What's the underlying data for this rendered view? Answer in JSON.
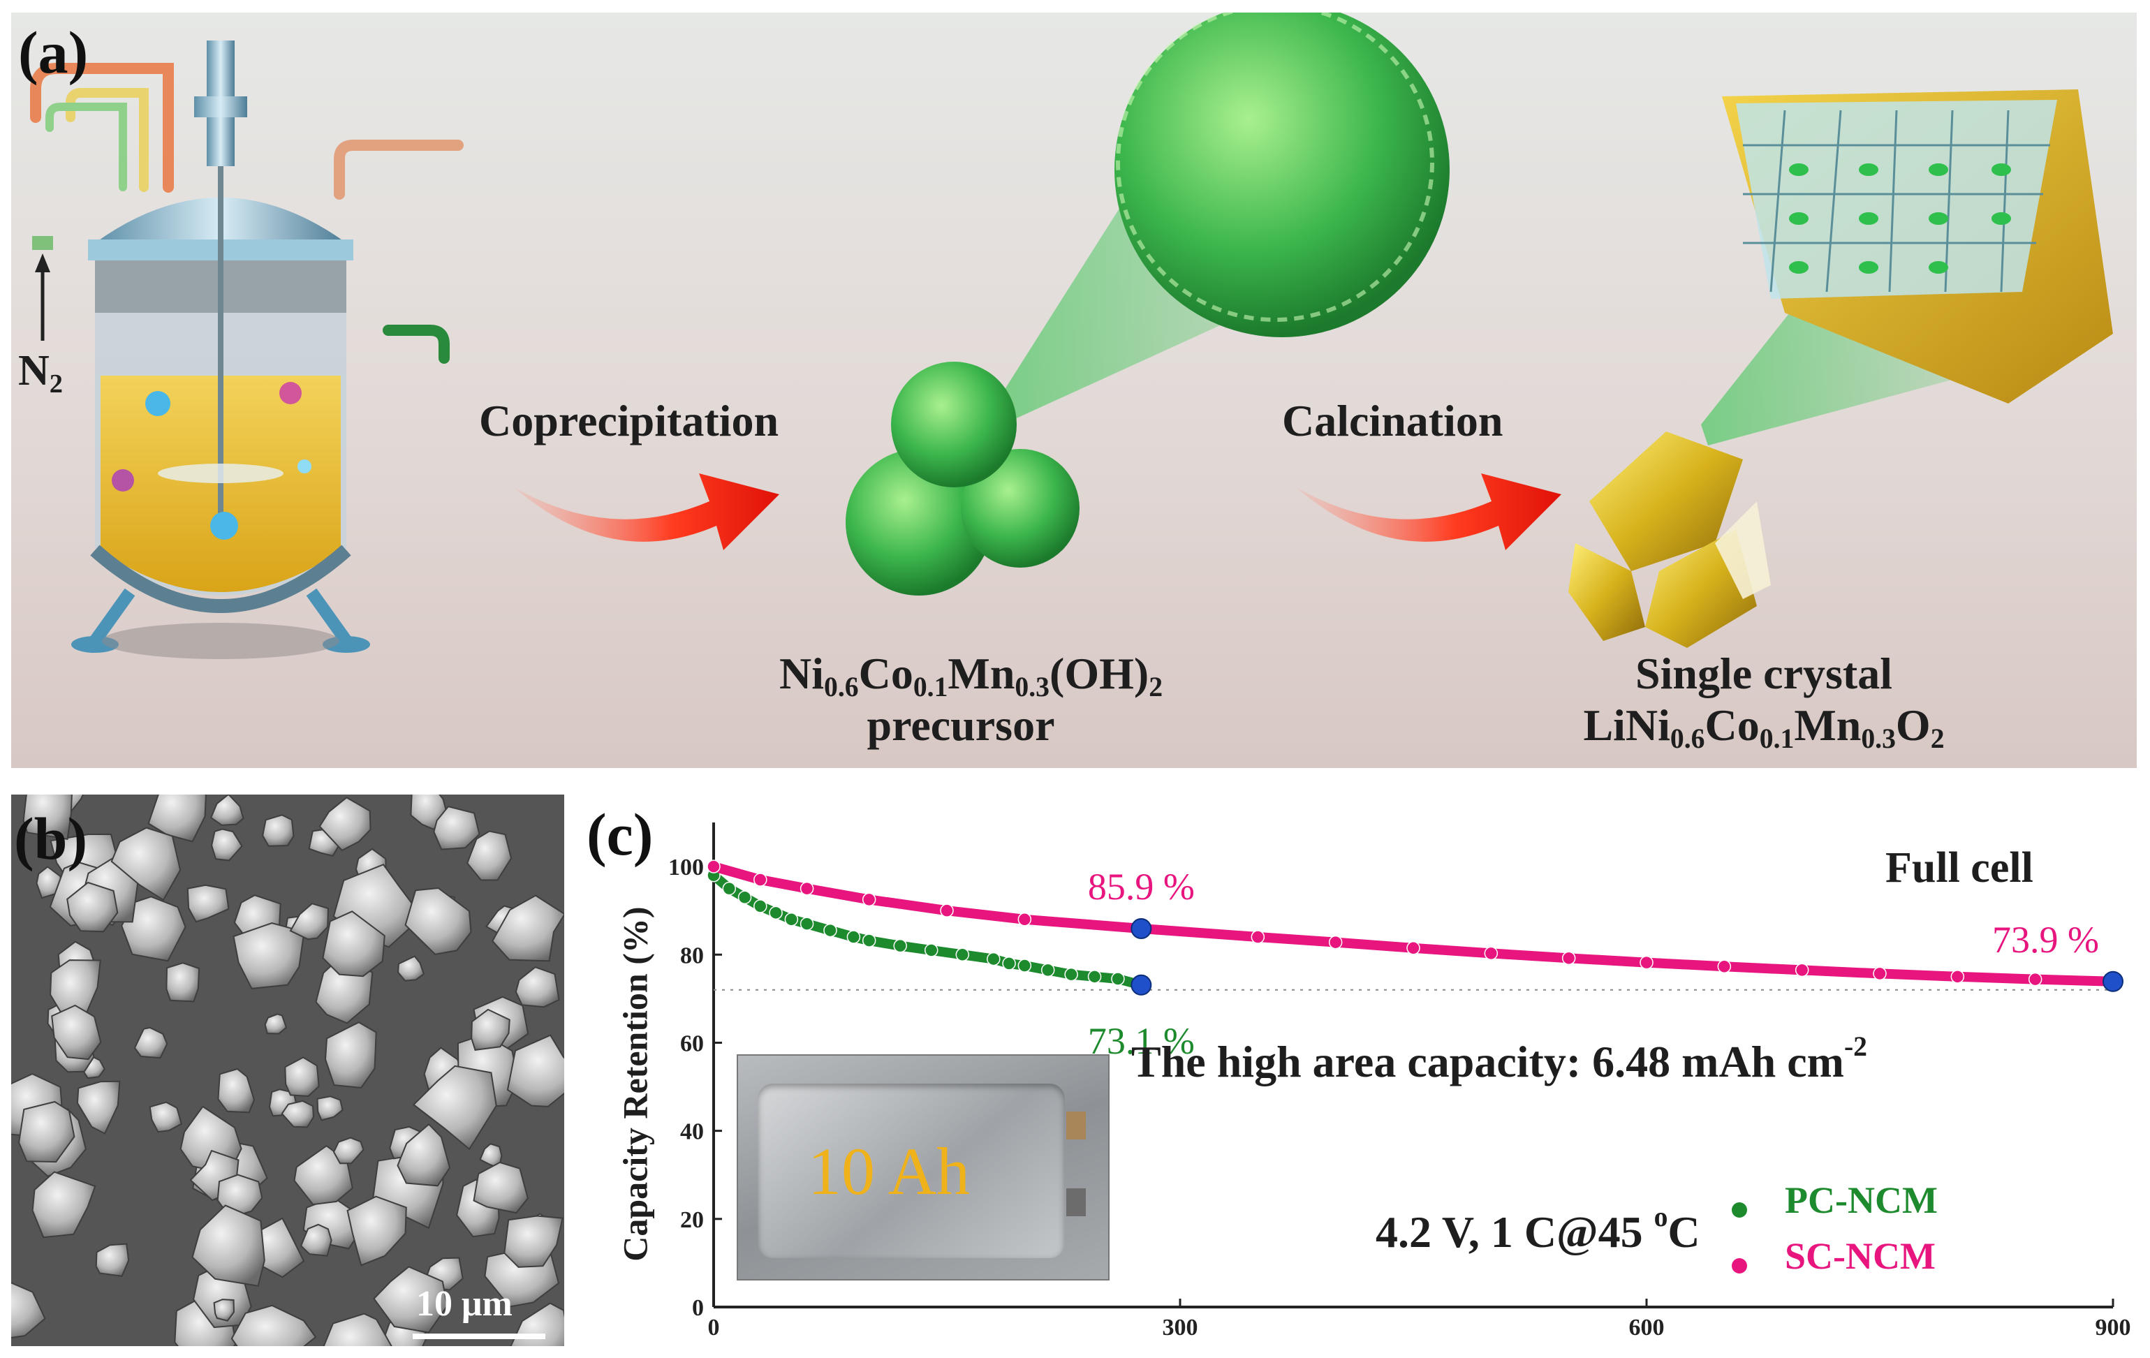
{
  "panel_a": {
    "label": "(a)",
    "n2_label": "N",
    "n2_sub": "2",
    "step1_label": "Coprecipitation",
    "step2_label": "Calcination",
    "precursor_formula": {
      "ni": "Ni",
      "ni_sub": "0.6",
      "co": "Co",
      "co_sub": "0.1",
      "mn": "Mn",
      "mn_sub": "0.3",
      "oh": "(OH)",
      "oh_sub": "2"
    },
    "precursor_label": "precursor",
    "product_line1": "Single crystal",
    "product_formula": {
      "li_ni": "LiNi",
      "ni_sub": "0.6",
      "co": "Co",
      "co_sub": "0.1",
      "mn": "Mn",
      "mn_sub": "0.3",
      "o": "O",
      "o_sub": "2"
    }
  },
  "panel_b": {
    "label": "(b)",
    "scale_bar": "10 μm"
  },
  "panel_c": {
    "label": "(c)",
    "title": "Full cell",
    "ylabel": "Capacity Retention (%)",
    "inset_text": "10 Ah",
    "area_capacity_text": "The high area capacity: 6.48 mAh cm",
    "area_capacity_sup": "-2",
    "condition_text": "4.2 V, 1 C@45 ",
    "condition_sup": "o",
    "condition_tail": "C"
  },
  "colors": {
    "pc_ncm": "#1e8a2e",
    "sc_ncm": "#e8157f",
    "marker_blue": "#1f4fc9"
  },
  "chart_data": {
    "type": "scatter",
    "x_ticks": [
      "0",
      "300",
      "600",
      "900"
    ],
    "y_ticks": [
      "0",
      "20",
      "40",
      "60",
      "80",
      "100"
    ],
    "xlim": [
      0,
      900
    ],
    "ylim": [
      0,
      110
    ],
    "reference_line_y": 72,
    "series": [
      {
        "name": "PC-NCM",
        "color": "#1e8a2e",
        "x": [
          0,
          10,
          20,
          30,
          40,
          50,
          60,
          75,
          90,
          100,
          120,
          140,
          160,
          180,
          190,
          200,
          215,
          230,
          245,
          260,
          275
        ],
        "y": [
          98,
          95,
          93,
          91,
          89.5,
          88,
          87,
          85.5,
          84,
          83.2,
          82,
          81,
          80,
          79,
          78,
          77.5,
          76.5,
          75.5,
          75,
          74.5,
          73.1
        ]
      },
      {
        "name": "SC-NCM",
        "color": "#e8157f",
        "x": [
          0,
          30,
          60,
          100,
          150,
          200,
          275,
          350,
          400,
          450,
          500,
          550,
          600,
          650,
          700,
          750,
          800,
          850,
          900
        ],
        "y": [
          100,
          97,
          95,
          92.5,
          90,
          88,
          85.9,
          84,
          82.8,
          81.5,
          80.3,
          79.2,
          78.2,
          77.3,
          76.5,
          75.7,
          75,
          74.4,
          73.9
        ]
      }
    ],
    "annotations": [
      {
        "text": "85.9 %",
        "x": 275,
        "y": 85.9,
        "series": "SC-NCM"
      },
      {
        "text": "73.1 %",
        "x": 275,
        "y": 73.1,
        "series": "PC-NCM"
      },
      {
        "text": "73.9 %",
        "x": 900,
        "y": 73.9,
        "series": "SC-NCM"
      }
    ]
  }
}
